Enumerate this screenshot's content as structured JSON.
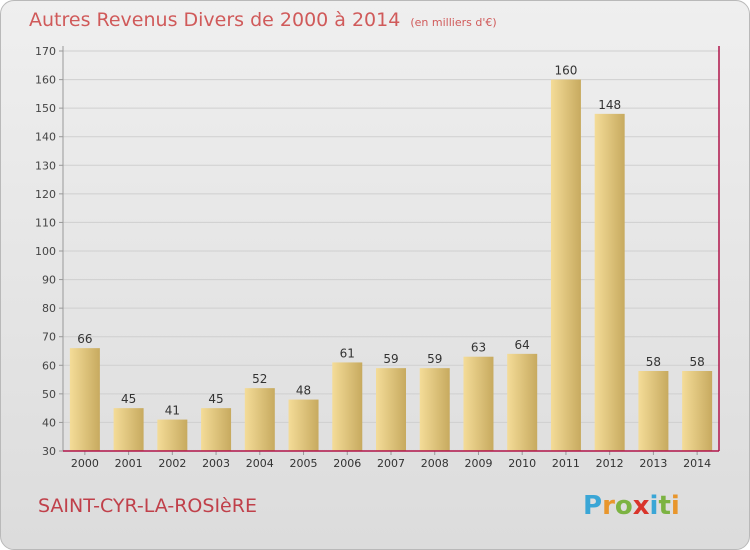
{
  "header": {
    "title": "Autres Revenus Divers de 2000 à 2014",
    "unit": "(en milliers d'€)"
  },
  "footer": {
    "place": "SAINT-CYR-LA-ROSIèRE",
    "logo_letters": [
      "P",
      "r",
      "o",
      "x",
      "i",
      "t",
      "i"
    ],
    "logo_colors": [
      "#3aa6d6",
      "#e8962c",
      "#7cb342",
      "#d9342b",
      "#3aa6d6",
      "#7cb342",
      "#e8962c"
    ]
  },
  "colors": {
    "title": "#d05a5a",
    "place": "#c0404a",
    "bar_light": "#f4dc98",
    "bar_dark": "#c7aa5f",
    "axis": "#b0144a"
  },
  "chart_data": {
    "type": "bar",
    "categories": [
      "2000",
      "2001",
      "2002",
      "2003",
      "2004",
      "2005",
      "2006",
      "2007",
      "2008",
      "2009",
      "2010",
      "2011",
      "2012",
      "2013",
      "2014"
    ],
    "values": [
      66,
      45,
      41,
      45,
      52,
      48,
      61,
      59,
      59,
      63,
      64,
      160,
      148,
      58,
      58
    ],
    "ylim": [
      30,
      170
    ],
    "yticks": [
      30,
      40,
      50,
      60,
      70,
      80,
      90,
      100,
      110,
      120,
      130,
      140,
      150,
      160,
      170
    ],
    "grid": true
  }
}
